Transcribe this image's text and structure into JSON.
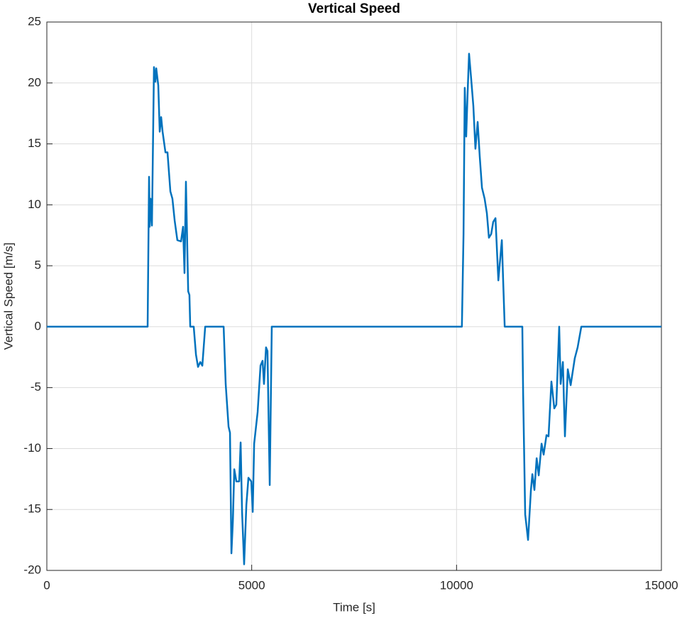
{
  "chart_data": {
    "type": "line",
    "title": "Vertical Speed",
    "x_label": "Time [s]",
    "y_label": "Vertical Speed [m/s]",
    "color": "#0072bd",
    "grid": true,
    "xlim": [
      0,
      15000
    ],
    "xticks": [
      0,
      5000,
      10000,
      15000
    ],
    "ylim": [
      -20,
      25
    ],
    "yticks": [
      -20,
      -15,
      -10,
      -5,
      0,
      5,
      10,
      15,
      20,
      25
    ],
    "x": [
      0,
      2460,
      2495,
      2510,
      2530,
      2565,
      2615,
      2650,
      2670,
      2720,
      2755,
      2790,
      2825,
      2895,
      2945,
      3015,
      3065,
      3120,
      3185,
      3275,
      3325,
      3360,
      3395,
      3450,
      3480,
      3500,
      3585,
      3640,
      3690,
      3745,
      3795,
      3865,
      4315,
      4365,
      4435,
      4470,
      4505,
      4540,
      4575,
      4625,
      4695,
      4730,
      4765,
      4815,
      4870,
      4920,
      4990,
      5025,
      5060,
      5145,
      5215,
      5265,
      5300,
      5350,
      5385,
      5440,
      5490,
      10130,
      10170,
      10200,
      10235,
      10270,
      10305,
      10355,
      10410,
      10460,
      10515,
      10565,
      10620,
      10685,
      10740,
      10790,
      10845,
      10895,
      10950,
      11020,
      11105,
      11140,
      11175,
      11605,
      11625,
      11675,
      11745,
      11815,
      11850,
      11900,
      11955,
      12005,
      12075,
      12125,
      12195,
      12245,
      12315,
      12385,
      12435,
      12505,
      12540,
      12595,
      12645,
      12715,
      12785,
      12885,
      12955,
      13045,
      15000
    ],
    "values": [
      0,
      0,
      12.3,
      8.2,
      10.5,
      8.3,
      21.3,
      20.1,
      21.2,
      19.8,
      16,
      17.2,
      16,
      14.3,
      14.3,
      11.1,
      10.5,
      8.7,
      7.1,
      7.0,
      8.2,
      4.4,
      11.9,
      2.9,
      2.6,
      0,
      0,
      -2.3,
      -3.3,
      -2.9,
      -3.2,
      0,
      0,
      -4.7,
      -8.2,
      -8.7,
      -18.6,
      -16,
      -11.7,
      -12.7,
      -12.7,
      -9.5,
      -15.2,
      -19.5,
      -14.6,
      -12.4,
      -12.7,
      -15.2,
      -9.6,
      -7.0,
      -3.2,
      -2.8,
      -4.7,
      -1.7,
      -2.0,
      -13.0,
      0,
      0,
      7.6,
      19.6,
      15.6,
      19.2,
      22.4,
      20.4,
      18.1,
      14.6,
      16.8,
      14,
      11.4,
      10.5,
      9.3,
      7.3,
      7.6,
      8.6,
      8.9,
      3.8,
      7.1,
      3.5,
      0,
      0,
      -5.5,
      -15.4,
      -17.5,
      -13.4,
      -12.1,
      -13.4,
      -10.8,
      -12.2,
      -9.6,
      -10.5,
      -8.9,
      -9.0,
      -4.5,
      -6.7,
      -6.4,
      0,
      -4.7,
      -2.9,
      -9.0,
      -3.5,
      -4.8,
      -2.6,
      -1.7,
      0,
      0
    ]
  }
}
